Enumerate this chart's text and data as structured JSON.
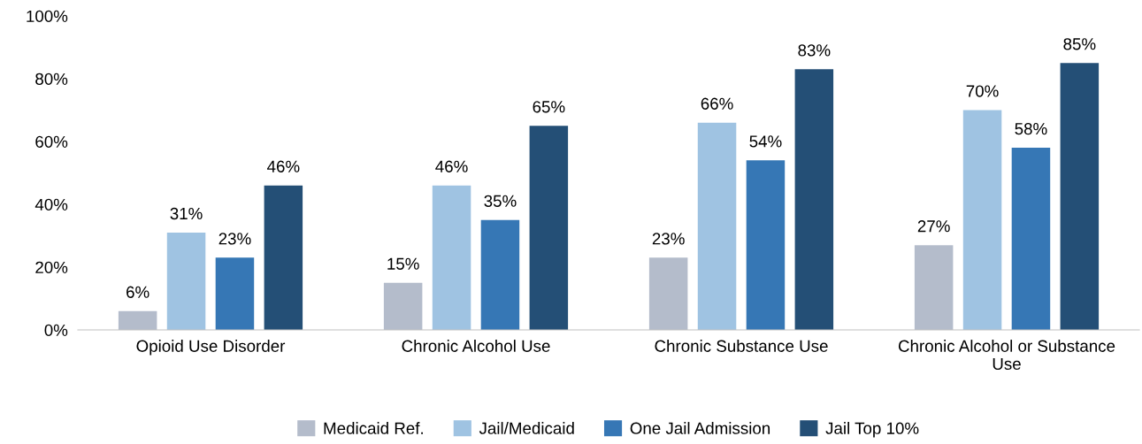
{
  "chart_data": {
    "type": "bar",
    "categories": [
      "Opioid Use Disorder",
      "Chronic Alcohol Use",
      "Chronic Substance Use",
      "Chronic Alcohol or Substance\nUse"
    ],
    "series": [
      {
        "name": "Medicaid Ref.",
        "color": "#b4bccb",
        "values": [
          6,
          15,
          23,
          27
        ],
        "value_labels": [
          "6%",
          "15%",
          "23%",
          "27%"
        ]
      },
      {
        "name": "Jail/Medicaid",
        "color": "#9fc3e2",
        "values": [
          31,
          46,
          66,
          70
        ],
        "value_labels": [
          "31%",
          "46%",
          "66%",
          "70%"
        ]
      },
      {
        "name": "One Jail Admission",
        "color": "#3677b5",
        "values": [
          23,
          35,
          54,
          58
        ],
        "value_labels": [
          "23%",
          "35%",
          "54%",
          "58%"
        ]
      },
      {
        "name": "Jail Top 10%",
        "color": "#244f76",
        "values": [
          46,
          65,
          83,
          85
        ],
        "value_labels": [
          "46%",
          "65%",
          "83%",
          "85%"
        ]
      }
    ],
    "ylim": [
      0,
      100
    ],
    "yticks": [
      {
        "value": 0,
        "label": "0%"
      },
      {
        "value": 20,
        "label": "20%"
      },
      {
        "value": 40,
        "label": "40%"
      },
      {
        "value": 60,
        "label": "60%"
      },
      {
        "value": 80,
        "label": "80%"
      },
      {
        "value": 100,
        "label": "100%"
      }
    ],
    "grid": false,
    "legend": "bottom"
  }
}
